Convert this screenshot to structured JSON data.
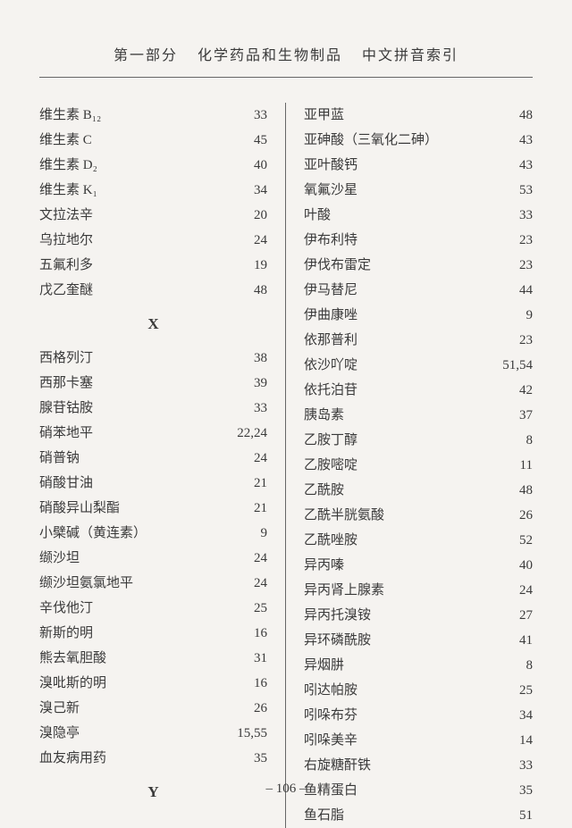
{
  "header": {
    "part": "第一部分",
    "title": "化学药品和生物制品",
    "subtitle": "中文拼音索引"
  },
  "leftColumn": {
    "preX": [
      {
        "name": "维生素 B₁₂",
        "page": "33"
      },
      {
        "name": "维生素 C",
        "page": "45"
      },
      {
        "name": "维生素 D₂",
        "page": "40"
      },
      {
        "name": "维生素 K₁",
        "page": "34"
      },
      {
        "name": "文拉法辛",
        "page": "20"
      },
      {
        "name": "乌拉地尔",
        "page": "24"
      },
      {
        "name": "五氟利多",
        "page": "19"
      },
      {
        "name": "戊乙奎醚",
        "page": "48"
      }
    ],
    "letterX": "X",
    "xItems": [
      {
        "name": "西格列汀",
        "page": "38"
      },
      {
        "name": "西那卡塞",
        "page": "39"
      },
      {
        "name": "腺苷钴胺",
        "page": "33"
      },
      {
        "name": "硝苯地平",
        "page": "22,24"
      },
      {
        "name": "硝普钠",
        "page": "24"
      },
      {
        "name": "硝酸甘油",
        "page": "21"
      },
      {
        "name": "硝酸异山梨酯",
        "page": "21"
      },
      {
        "name": "小檗碱（黄连素）",
        "page": "9"
      },
      {
        "name": "缬沙坦",
        "page": "24"
      },
      {
        "name": "缬沙坦氨氯地平",
        "page": "24"
      },
      {
        "name": "辛伐他汀",
        "page": "25"
      },
      {
        "name": "新斯的明",
        "page": "16"
      },
      {
        "name": "熊去氧胆酸",
        "page": "31"
      },
      {
        "name": "溴吡斯的明",
        "page": "16"
      },
      {
        "name": "溴己新",
        "page": "26"
      },
      {
        "name": "溴隐亭",
        "page": "15,55"
      },
      {
        "name": "血友病用药",
        "page": "35"
      }
    ],
    "letterY": "Y"
  },
  "rightColumn": {
    "items": [
      {
        "name": "亚甲蓝",
        "page": "48"
      },
      {
        "name": "亚砷酸（三氧化二砷）",
        "page": "43"
      },
      {
        "name": "亚叶酸钙",
        "page": "43"
      },
      {
        "name": "氧氟沙星",
        "page": "53"
      },
      {
        "name": "叶酸",
        "page": "33"
      },
      {
        "name": "伊布利特",
        "page": "23"
      },
      {
        "name": "伊伐布雷定",
        "page": "23"
      },
      {
        "name": "伊马替尼",
        "page": "44"
      },
      {
        "name": "伊曲康唑",
        "page": "9"
      },
      {
        "name": "依那普利",
        "page": "23"
      },
      {
        "name": "依沙吖啶",
        "page": "51,54"
      },
      {
        "name": "依托泊苷",
        "page": "42"
      },
      {
        "name": "胰岛素",
        "page": "37"
      },
      {
        "name": "乙胺丁醇",
        "page": "8"
      },
      {
        "name": "乙胺嘧啶",
        "page": "11"
      },
      {
        "name": "乙酰胺",
        "page": "48"
      },
      {
        "name": "乙酰半胱氨酸",
        "page": "26"
      },
      {
        "name": "乙酰唑胺",
        "page": "52"
      },
      {
        "name": "异丙嗪",
        "page": "40"
      },
      {
        "name": "异丙肾上腺素",
        "page": "24"
      },
      {
        "name": "异丙托溴铵",
        "page": "27"
      },
      {
        "name": "异环磷酰胺",
        "page": "41"
      },
      {
        "name": "异烟肼",
        "page": "8"
      },
      {
        "name": "吲达帕胺",
        "page": "25"
      },
      {
        "name": "吲哚布芬",
        "page": "34"
      },
      {
        "name": "吲哚美辛",
        "page": "14"
      },
      {
        "name": "右旋糖酐铁",
        "page": "33"
      },
      {
        "name": "鱼精蛋白",
        "page": "35"
      },
      {
        "name": "鱼石脂",
        "page": "51"
      }
    ]
  },
  "pageNumber": "– 106 –"
}
